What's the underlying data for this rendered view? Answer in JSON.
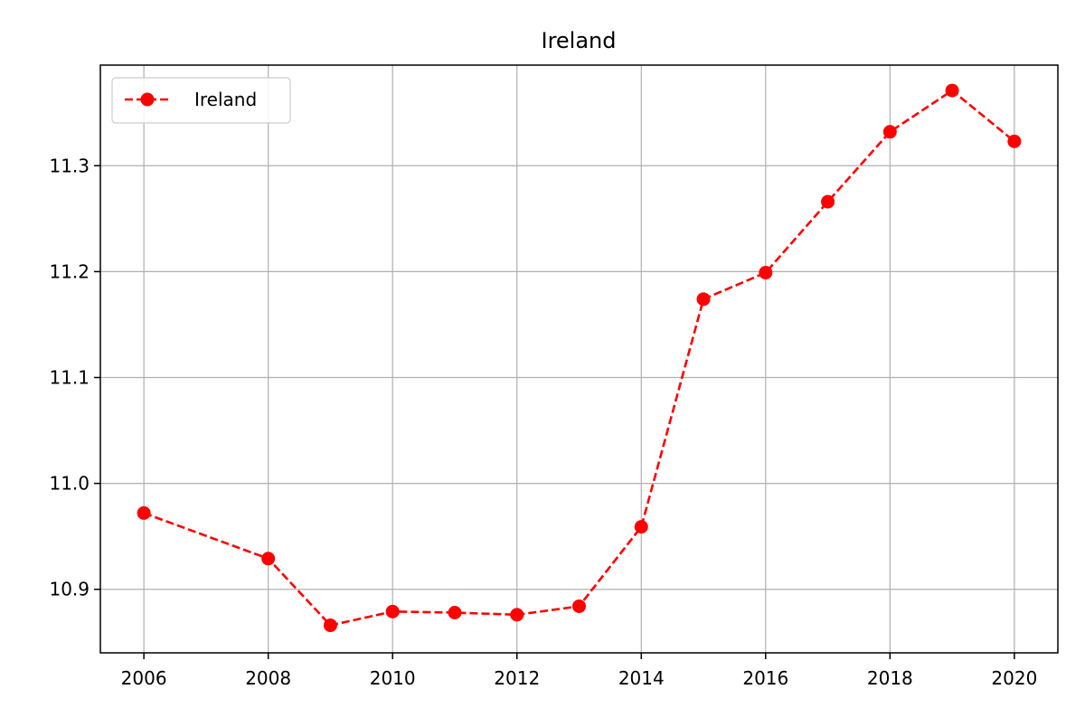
{
  "chart_data": {
    "type": "line",
    "title": "Ireland",
    "xlabel": "",
    "ylabel": "",
    "x": [
      2006,
      2008,
      2009,
      2010,
      2011,
      2012,
      2013,
      2014,
      2015,
      2016,
      2017,
      2018,
      2019,
      2020
    ],
    "series": [
      {
        "name": "Ireland",
        "color": "#ff0000",
        "line_style": "dashed",
        "marker": "circle",
        "values": [
          10.972,
          10.929,
          10.866,
          10.879,
          10.878,
          10.876,
          10.884,
          10.959,
          11.174,
          11.199,
          11.266,
          11.332,
          11.371,
          11.323
        ]
      }
    ],
    "xlim": [
      2005.3,
      2020.7
    ],
    "ylim": [
      10.84,
      11.395
    ],
    "x_ticks": [
      "2006",
      "2008",
      "2010",
      "2012",
      "2014",
      "2016",
      "2018",
      "2020"
    ],
    "y_ticks": [
      "10.9",
      "11.0",
      "11.1",
      "11.2",
      "11.3"
    ],
    "grid": true,
    "legend_position": "top-left"
  }
}
